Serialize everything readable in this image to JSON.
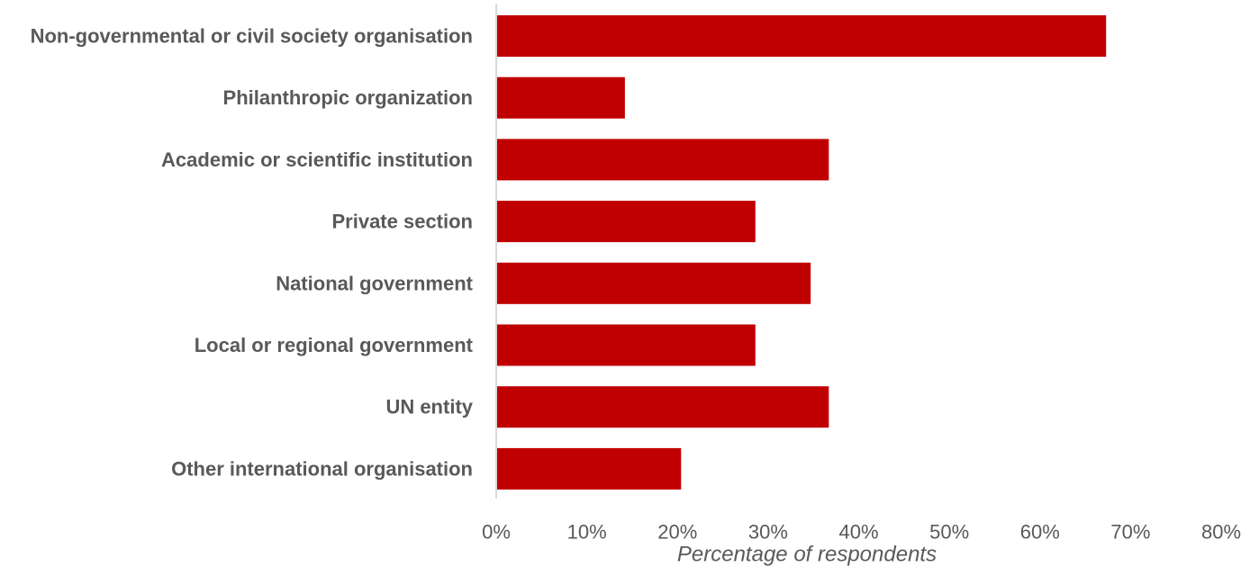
{
  "chart_data": {
    "type": "bar",
    "orientation": "horizontal",
    "title": "",
    "xlabel": "Percentage of respondents",
    "ylabel": "",
    "xlim": [
      0,
      80
    ],
    "x_ticks": [
      0,
      10,
      20,
      30,
      40,
      50,
      60,
      70,
      80
    ],
    "x_tick_labels": [
      "0%",
      "10%",
      "20%",
      "30%",
      "40%",
      "50%",
      "60%",
      "70%",
      "80%"
    ],
    "grid": false,
    "legend": "none",
    "bar_color": "#c00000",
    "categories": [
      "Non-governmental or civil society organisation",
      "Philanthropic organization",
      "Academic or scientific institution",
      "Private section",
      "National government",
      "Local or regional government",
      "UN entity",
      "Other international organisation"
    ],
    "values": [
      67.3,
      14.2,
      36.7,
      28.6,
      34.7,
      28.6,
      36.7,
      20.4
    ]
  }
}
